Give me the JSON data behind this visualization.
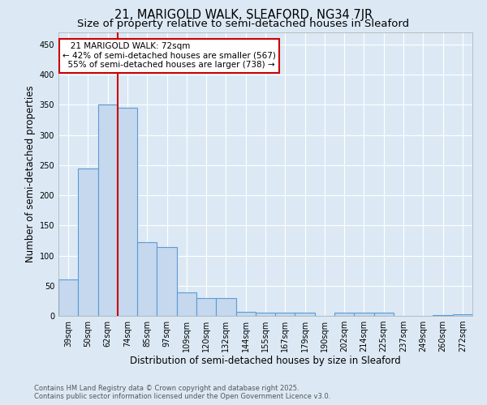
{
  "title_line1": "21, MARIGOLD WALK, SLEAFORD, NG34 7JR",
  "title_line2": "Size of property relative to semi-detached houses in Sleaford",
  "xlabel": "Distribution of semi-detached houses by size in Sleaford",
  "ylabel": "Number of semi-detached properties",
  "categories": [
    "39sqm",
    "50sqm",
    "62sqm",
    "74sqm",
    "85sqm",
    "97sqm",
    "109sqm",
    "120sqm",
    "132sqm",
    "144sqm",
    "155sqm",
    "167sqm",
    "179sqm",
    "190sqm",
    "202sqm",
    "214sqm",
    "225sqm",
    "237sqm",
    "249sqm",
    "260sqm",
    "272sqm"
  ],
  "values": [
    60,
    244,
    350,
    345,
    122,
    114,
    39,
    30,
    30,
    7,
    6,
    6,
    6,
    0,
    6,
    6,
    6,
    0,
    0,
    2,
    3
  ],
  "bar_color": "#c5d8ed",
  "bar_edge_color": "#5b9bd5",
  "annotation_line1": "   21 MARIGOLD WALK: 72sqm",
  "annotation_line2": "← 42% of semi-detached houses are smaller (567)",
  "annotation_line3": "  55% of semi-detached houses are larger (738) →",
  "annotation_box_color": "#ffffff",
  "annotation_box_edge": "#cc0000",
  "vline_color": "#cc0000",
  "vline_x": 2.5,
  "ylim": [
    0,
    470
  ],
  "yticks": [
    0,
    50,
    100,
    150,
    200,
    250,
    300,
    350,
    400,
    450
  ],
  "footer_line1": "Contains HM Land Registry data © Crown copyright and database right 2025.",
  "footer_line2": "Contains public sector information licensed under the Open Government Licence v3.0.",
  "background_color": "#dce9f5",
  "plot_bg_color": "#dce9f5",
  "grid_color": "#ffffff",
  "title_fontsize": 10.5,
  "subtitle_fontsize": 9.5,
  "axis_label_fontsize": 8.5,
  "tick_fontsize": 7,
  "annotation_fontsize": 7.5
}
